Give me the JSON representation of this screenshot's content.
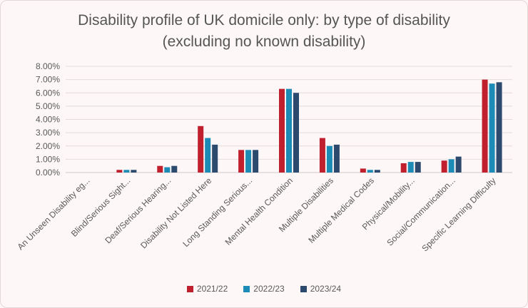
{
  "chart_data": {
    "type": "bar",
    "title_lines": [
      "Disability profile of UK domicile only: by type of disability",
      "(excluding no known disability)"
    ],
    "categories": [
      "An Unseen Disability eg...",
      "Blind/Serious Sight...",
      "Deaf/Serious Hearing...",
      "Disability Not Listed Here",
      "Long Standing Serious...",
      "Mental Health Condition",
      "Multiple Disabilities",
      "Multiple Medical Codes",
      "Physical/Mobility...",
      "Social/Communication...",
      "Specific Learning Difficulty"
    ],
    "series": [
      {
        "name": "2021/22",
        "color": "#c0202e",
        "values": [
          0.0,
          0.2,
          0.5,
          3.5,
          1.7,
          6.3,
          2.6,
          0.3,
          0.7,
          0.9,
          7.0
        ]
      },
      {
        "name": "2022/23",
        "color": "#1c8bb5",
        "values": [
          0.0,
          0.2,
          0.4,
          2.6,
          1.7,
          6.3,
          2.0,
          0.2,
          0.8,
          1.0,
          6.7
        ]
      },
      {
        "name": "2023/24",
        "color": "#2c4a6e",
        "values": [
          0.0,
          0.2,
          0.5,
          2.1,
          1.7,
          6.0,
          2.1,
          0.2,
          0.8,
          1.2,
          6.8
        ]
      }
    ],
    "y_ticks": [
      "0.00%",
      "1.00%",
      "2.00%",
      "3.00%",
      "4.00%",
      "5.00%",
      "6.00%",
      "7.00%",
      "8.00%"
    ],
    "ylim": [
      0,
      8
    ],
    "grid": true,
    "legend_position": "bottom"
  }
}
